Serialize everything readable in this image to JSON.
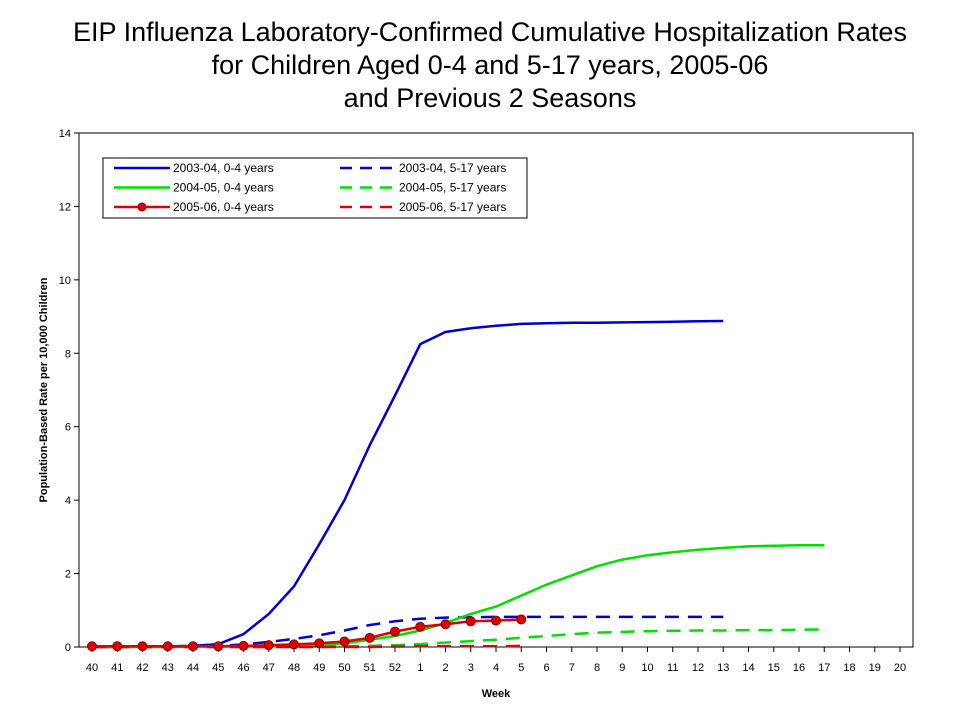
{
  "chart_data": {
    "type": "line",
    "title": [
      "EIP Influenza Laboratory-Confirmed Cumulative Hospitalization Rates",
      "for Children Aged 0-4 and 5-17 years, 2005-06",
      "and Previous 2 Seasons"
    ],
    "xlabel": "Week",
    "ylabel": "Population-Based Rate per 10,000 Children",
    "ylim": [
      0,
      14
    ],
    "yticks": [
      0,
      2,
      4,
      6,
      8,
      10,
      12,
      14
    ],
    "categories": [
      "40",
      "41",
      "42",
      "43",
      "44",
      "45",
      "46",
      "47",
      "48",
      "49",
      "50",
      "51",
      "52",
      "1",
      "2",
      "3",
      "4",
      "5",
      "6",
      "7",
      "8",
      "9",
      "10",
      "11",
      "12",
      "13",
      "14",
      "15",
      "16",
      "17",
      "18",
      "19",
      "20"
    ],
    "legend_position": "top-left",
    "series": [
      {
        "name": "2003-04, 0-4 years",
        "color": "#0000cc",
        "dash": "solid",
        "marker": false,
        "values": [
          0,
          0,
          0.01,
          0.02,
          0.03,
          0.08,
          0.35,
          0.9,
          1.65,
          2.8,
          4.0,
          5.5,
          6.85,
          8.25,
          8.58,
          8.68,
          8.75,
          8.8,
          8.82,
          8.83,
          8.83,
          8.84,
          8.85,
          8.86,
          8.87,
          8.88,
          null,
          null,
          null,
          null,
          null,
          null,
          null
        ]
      },
      {
        "name": "2003-04, 5-17 years",
        "color": "#0000cc",
        "dash": "dash",
        "marker": false,
        "values": [
          0,
          0,
          0,
          0.01,
          0.01,
          0.03,
          0.07,
          0.14,
          0.22,
          0.32,
          0.45,
          0.6,
          0.7,
          0.77,
          0.8,
          0.81,
          0.82,
          0.82,
          0.82,
          0.82,
          0.82,
          0.82,
          0.82,
          0.82,
          0.82,
          0.82,
          null,
          null,
          null,
          null,
          null,
          null,
          null
        ]
      },
      {
        "name": "2004-05, 0-4 years",
        "color": "#00dd00",
        "dash": "solid",
        "marker": false,
        "values": [
          0,
          0,
          0,
          0,
          0.01,
          0.01,
          0.01,
          0.02,
          0.03,
          0.05,
          0.1,
          0.2,
          0.3,
          0.45,
          0.65,
          0.9,
          1.1,
          1.4,
          1.7,
          1.95,
          2.2,
          2.38,
          2.5,
          2.58,
          2.65,
          2.7,
          2.74,
          2.76,
          2.77,
          2.77,
          null,
          null,
          null
        ]
      },
      {
        "name": "2004-05, 5-17 years",
        "color": "#00dd00",
        "dash": "dash",
        "marker": false,
        "values": [
          0,
          0,
          0,
          0,
          0,
          0,
          0,
          0,
          0.01,
          0.01,
          0.02,
          0.03,
          0.05,
          0.08,
          0.12,
          0.16,
          0.2,
          0.25,
          0.3,
          0.35,
          0.39,
          0.41,
          0.43,
          0.44,
          0.45,
          0.45,
          0.46,
          0.46,
          0.47,
          0.48,
          null,
          null,
          null
        ]
      },
      {
        "name": "2005-06, 0-4 years",
        "color": "#dd0000",
        "dash": "solid",
        "marker": true,
        "values": [
          0.02,
          0.02,
          0.02,
          0.02,
          0.02,
          0.02,
          0.03,
          0.05,
          0.07,
          0.1,
          0.15,
          0.25,
          0.42,
          0.55,
          0.62,
          0.7,
          0.72,
          0.75,
          null,
          null,
          null,
          null,
          null,
          null,
          null,
          null,
          null,
          null,
          null,
          null,
          null,
          null,
          null
        ]
      },
      {
        "name": "2005-06, 5-17 years",
        "color": "#dd0000",
        "dash": "dash",
        "marker": false,
        "values": [
          0,
          0,
          0,
          0,
          0,
          0,
          0,
          0,
          0,
          0,
          0,
          0,
          0.01,
          0.02,
          0.02,
          0.02,
          0.02,
          0.03,
          null,
          null,
          null,
          null,
          null,
          null,
          null,
          null,
          null,
          null,
          null,
          null,
          null,
          null,
          null
        ]
      }
    ]
  }
}
